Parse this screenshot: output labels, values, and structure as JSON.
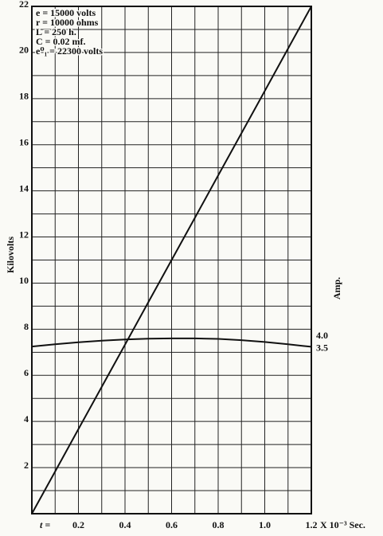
{
  "chart_data": {
    "type": "line",
    "annotations": [
      "e = 15000 volts",
      "r = 10000 ohms",
      "L = 250 h.",
      "C = 0.02 mf.",
      "e⁰₁ = 22300 volts"
    ],
    "ylabel": "Kilovolts",
    "y2label": "Amp.",
    "x_label_prefix": "t =",
    "x_label_suffix": "X 10⁻³ Sec.",
    "x": [
      0,
      0.1,
      0.2,
      0.3,
      0.4,
      0.5,
      0.6,
      0.7,
      0.8,
      0.9,
      1.0,
      1.1,
      1.2
    ],
    "series": [
      {
        "color": "#111111",
        "values": [
          0,
          1.83,
          3.67,
          5.5,
          7.33,
          9.17,
          11,
          12.83,
          14.67,
          16.5,
          18.33,
          20.17,
          22
        ]
      },
      {
        "color": "#111111",
        "axis": "y2",
        "values": [
          3.59,
          3.68,
          3.76,
          3.82,
          3.87,
          3.9,
          3.91,
          3.91,
          3.89,
          3.84,
          3.77,
          3.68,
          3.58
        ]
      }
    ],
    "xlim": [
      0,
      1.2
    ],
    "xticks": [
      0.2,
      0.4,
      0.6,
      0.8,
      {
        "value": 1.0,
        "label": "1.0"
      },
      1.2
    ],
    "ylim": [
      0,
      22
    ],
    "yticks": [
      2,
      4,
      6,
      8,
      10,
      12,
      14,
      16,
      18,
      20,
      22
    ],
    "y2lim": [
      -3,
      17
    ],
    "y2ticks": [
      {
        "value": 4.0,
        "label": "4.0"
      },
      3.5
    ],
    "xgrid": [
      0,
      0.1,
      0.2,
      0.3,
      0.4,
      0.5,
      0.6,
      0.7,
      0.8,
      0.9,
      1.0,
      1.1,
      1.2
    ],
    "ygrid": [
      0,
      1,
      2,
      3,
      4,
      5,
      6,
      7,
      8,
      9,
      10,
      11,
      12,
      13,
      14,
      15,
      16,
      17,
      18,
      19,
      20,
      21,
      22
    ]
  }
}
